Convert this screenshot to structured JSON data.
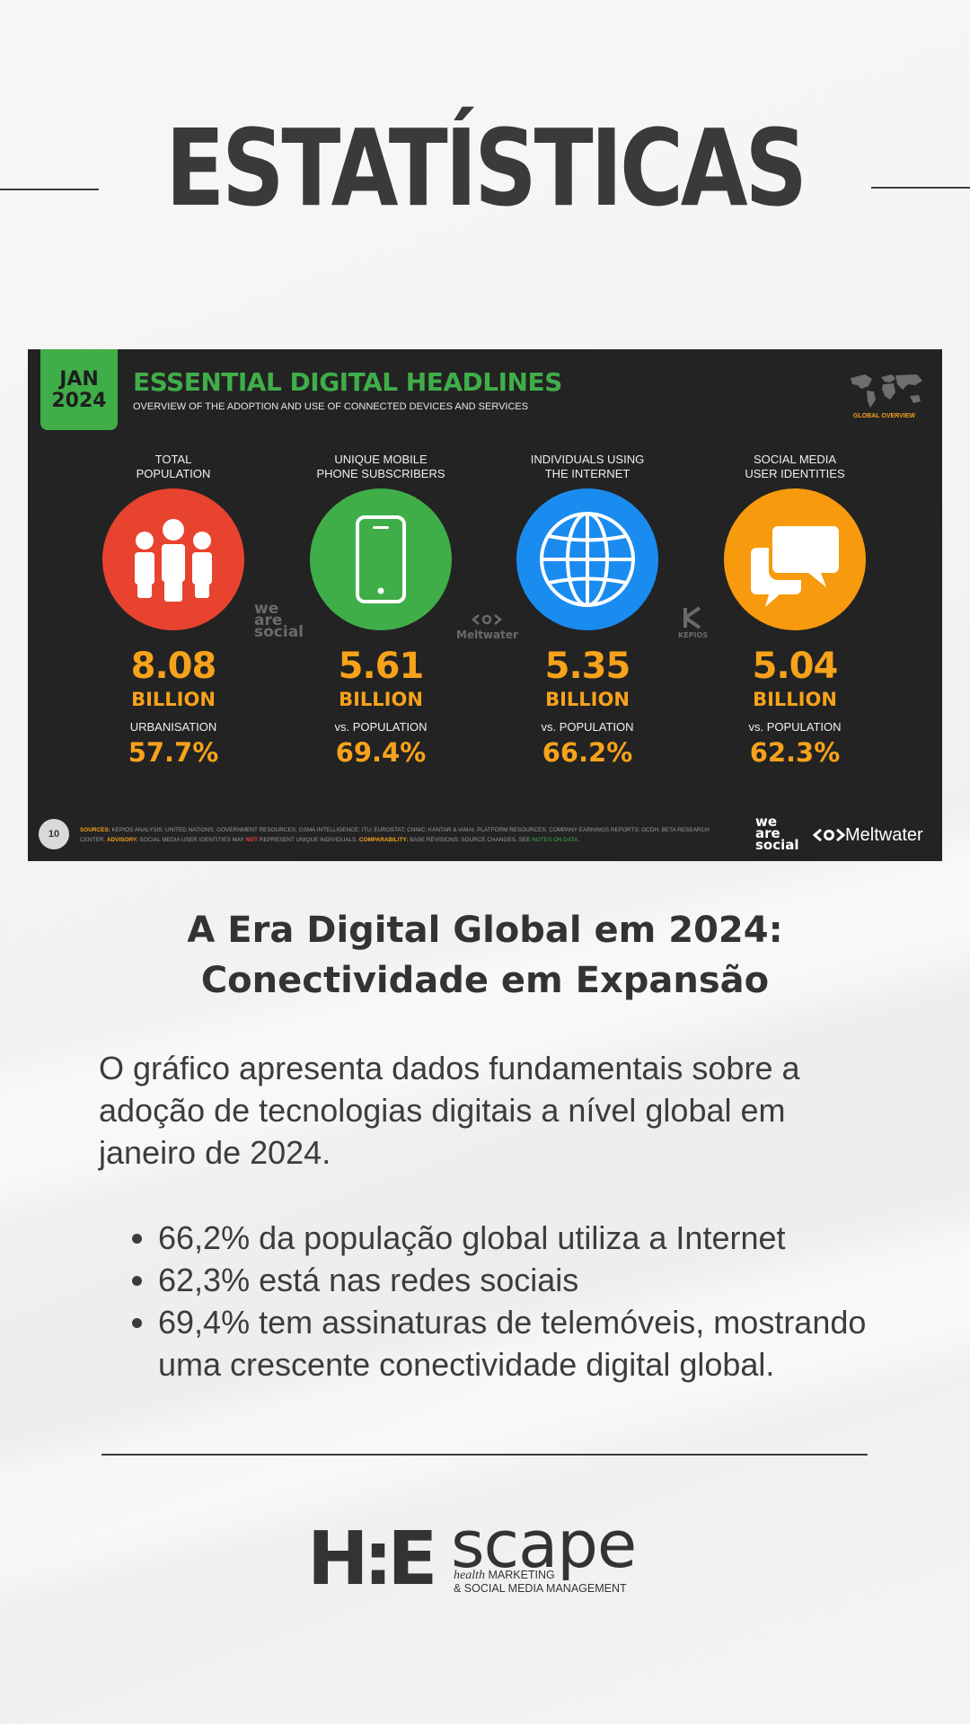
{
  "page": {
    "title": "ESTATÍSTICAS"
  },
  "infographic": {
    "badge": {
      "month": "JAN",
      "year": "2024"
    },
    "headline": "ESSENTIAL DIGITAL HEADLINES",
    "subheadline": "OVERVIEW OF THE ADOPTION AND USE OF CONNECTED DEVICES AND SERVICES",
    "overview_label": "GLOBAL OVERVIEW",
    "columns": [
      {
        "label_line1": "TOTAL",
        "label_line2": "POPULATION",
        "value": "8.08",
        "unit": "BILLION",
        "sub_label": "URBANISATION",
        "pct": "57.7%",
        "icon": "people-icon",
        "color": "#e8432f"
      },
      {
        "label_line1": "UNIQUE MOBILE",
        "label_line2": "PHONE SUBSCRIBERS",
        "value": "5.61",
        "unit": "BILLION",
        "sub_label": "vs. POPULATION",
        "pct": "69.4%",
        "icon": "mobile-phone-icon",
        "color": "#3fae49"
      },
      {
        "label_line1": "INDIVIDUALS USING",
        "label_line2": "THE INTERNET",
        "value": "5.35",
        "unit": "BILLION",
        "sub_label": "vs. POPULATION",
        "pct": "66.2%",
        "icon": "globe-icon",
        "color": "#1a8cf0"
      },
      {
        "label_line1": "SOCIAL MEDIA",
        "label_line2": "USER IDENTITIES",
        "value": "5.04",
        "unit": "BILLION",
        "sub_label": "vs. POPULATION",
        "pct": "62.3%",
        "icon": "chat-bubbles-icon",
        "color": "#f79a0e"
      }
    ],
    "watermarks": {
      "was_1": "we",
      "was_2": "are",
      "was_3": "social",
      "meltwater": "Meltwater",
      "kepios": "KEPIOS"
    },
    "page_number": "10",
    "sources": {
      "sources_label": "SOURCES:",
      "sources_text": " KEPIOS ANALYSIS; UNITED NATIONS; GOVERNMENT RESOURCES; GSMA INTELLIGENCE; ITU; EUROSTAT; CNNIC; KANTAR & IAMAI; PLATFORM RESOURCES; COMPANY EARNINGS REPORTS; OCDH; BETA RESEARCH CENTER. ",
      "advisory_label": "ADVISORY:",
      "advisory_text": " SOCIAL MEDIA USER IDENTITIES MAY ",
      "not_word": "NOT",
      "advisory_text2": " REPRESENT UNIQUE INDIVIDUALS. ",
      "comparability_label": "COMPARABILITY:",
      "comparability_text": " BASE REVISIONS; SOURCE CHANGES. SEE ",
      "notes_link": "NOTES ON DATA",
      "end": "."
    },
    "footer_logos": {
      "was_1": "we",
      "was_2": "are",
      "was_3": "social",
      "meltwater": "Meltwater"
    }
  },
  "article": {
    "title_line1": "A Era Digital Global em 2024:",
    "title_line2": "Conectividade em Expansão",
    "body": "O gráfico apresenta dados fundamentais sobre a adoção de tecnologias digitais a nível global em janeiro de 2024.",
    "bullets": [
      "66,2% da população global utiliza a Internet",
      "62,3% está nas redes sociais",
      "69,4% tem assinaturas de telemóveis, mostrando uma crescente conectividade digital global."
    ]
  },
  "brand": {
    "mark": "H:E",
    "word": "scape",
    "tag_italic": "health",
    "tag_line1": " MARKETING",
    "tag_line2": "& SOCIAL MEDIA MANAGEMENT"
  }
}
